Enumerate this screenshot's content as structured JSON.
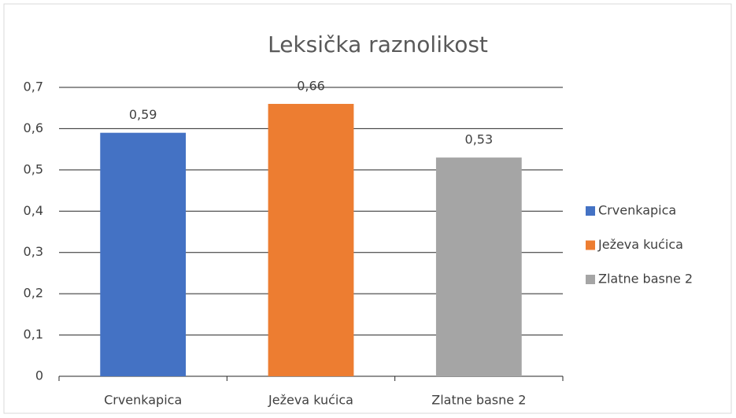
{
  "chart_data": {
    "type": "bar",
    "title": "Leksička raznolikost",
    "categories": [
      "Crvenkapica",
      "Ježeva kućica",
      "Zlatne basne 2"
    ],
    "values": [
      0.59,
      0.66,
      0.53
    ],
    "value_labels": [
      "0,59",
      "0,66",
      "0,53"
    ],
    "colors": [
      "#4472c4",
      "#ed7d31",
      "#a5a5a5"
    ],
    "ylim": [
      0,
      0.7
    ],
    "yticks": [
      0,
      {
        "value": 0.1,
        "label": "0,1"
      },
      {
        "value": 0.2,
        "label": "0,2"
      },
      {
        "value": 0.3,
        "label": "0,3"
      },
      {
        "value": 0.4,
        "label": "0,4"
      },
      {
        "value": 0.5,
        "label": "0,5"
      },
      {
        "value": 0.6,
        "label": "0,6"
      },
      {
        "value": 0.7,
        "label": "0,7"
      }
    ],
    "grid": true,
    "legend": "right"
  }
}
